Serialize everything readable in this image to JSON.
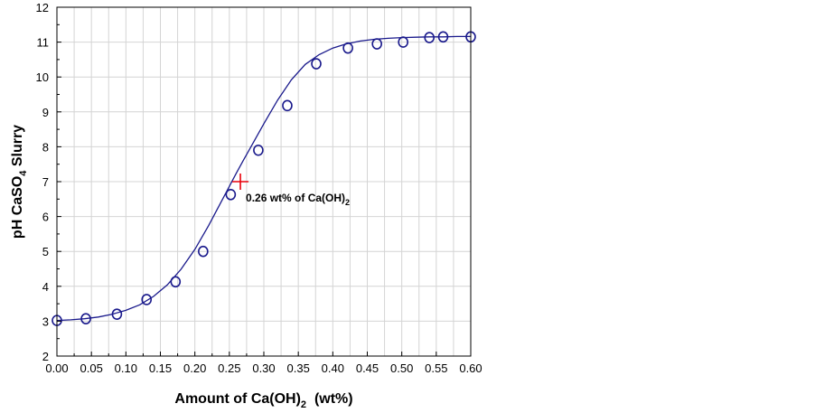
{
  "chart_data": {
    "type": "scatter",
    "title": "",
    "xlabel": {
      "prefix": "Amount of Ca(OH)",
      "sub": "2",
      "suffix": "  (wt%)"
    },
    "ylabel": {
      "prefix": "pH CaSO",
      "sub": "4",
      "suffix": " Slurry"
    },
    "xlim": [
      0,
      0.6
    ],
    "ylim": [
      2,
      12
    ],
    "x_ticks": [
      "0.00",
      "0.05",
      "0.10",
      "0.15",
      "0.20",
      "0.25",
      "0.30",
      "0.35",
      "0.40",
      "0.45",
      "0.50",
      "0.55",
      "0.60"
    ],
    "y_ticks": [
      "2",
      "3",
      "4",
      "5",
      "6",
      "7",
      "8",
      "9",
      "10",
      "11",
      "12"
    ],
    "grid": true,
    "series": [
      {
        "marker": "circle",
        "color": "#1a1a8c",
        "x": [
          0.0,
          0.042,
          0.087,
          0.13,
          0.172,
          0.212,
          0.252,
          0.292,
          0.334,
          0.376,
          0.422,
          0.464,
          0.502,
          0.54,
          0.56,
          0.6
        ],
        "y": [
          3.02,
          3.07,
          3.2,
          3.62,
          4.13,
          5.0,
          6.63,
          7.9,
          9.18,
          10.38,
          10.83,
          10.95,
          11.0,
          11.13,
          11.15,
          11.15
        ]
      }
    ],
    "fit_curve": {
      "color": "#1a1a8c",
      "x": [
        0.0,
        0.02,
        0.04,
        0.06,
        0.08,
        0.1,
        0.12,
        0.14,
        0.16,
        0.18,
        0.2,
        0.22,
        0.24,
        0.26,
        0.27,
        0.28,
        0.3,
        0.32,
        0.34,
        0.36,
        0.38,
        0.4,
        0.42,
        0.44,
        0.46,
        0.48,
        0.5,
        0.52,
        0.54,
        0.56,
        0.58,
        0.6
      ],
      "y": [
        3.02,
        3.04,
        3.07,
        3.12,
        3.2,
        3.31,
        3.47,
        3.71,
        4.04,
        4.49,
        5.06,
        5.74,
        6.49,
        7.24,
        7.6,
        7.95,
        8.66,
        9.34,
        9.92,
        10.36,
        10.64,
        10.83,
        10.95,
        11.03,
        11.08,
        11.11,
        11.13,
        11.14,
        11.15,
        11.15,
        11.16,
        11.16
      ]
    },
    "annotation": {
      "marker_x": 0.266,
      "marker_y": 7.0,
      "marker_color": "#e8000b",
      "text_prefix": "0.26 wt% of Ca(OH)",
      "text_sub": "2"
    }
  }
}
